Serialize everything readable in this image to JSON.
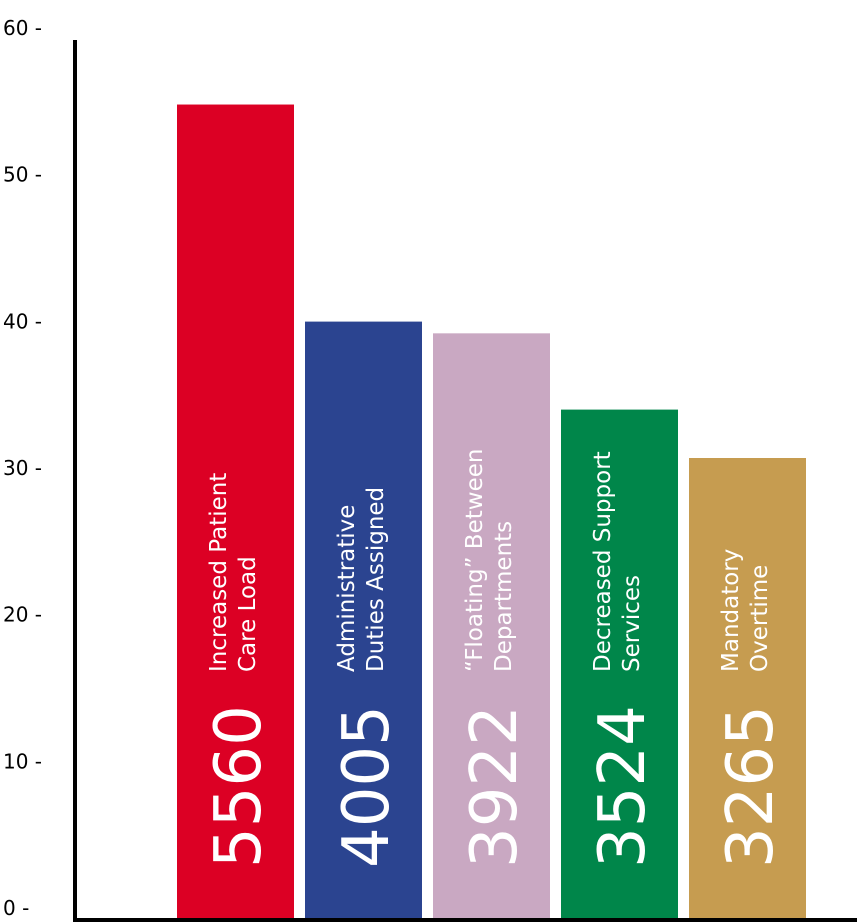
{
  "chart_data": {
    "type": "bar",
    "ylim": [
      0,
      60
    ],
    "yticks": [
      {
        "value": 0,
        "label": "0 -"
      },
      {
        "value": 10,
        "label": "10 -"
      },
      {
        "value": 20,
        "label": "20 -"
      },
      {
        "value": 30,
        "label": "30 -"
      },
      {
        "value": 40,
        "label": "40 -"
      },
      {
        "value": 50,
        "label": "50 -"
      },
      {
        "value": 60,
        "label": "60 -"
      }
    ],
    "grid": false,
    "bars": [
      {
        "value": 55.6,
        "count": "5560",
        "label_lines": [
          "Increased Patient",
          "Care Load"
        ],
        "color": "#dc0024",
        "text_color": "#ffffff"
      },
      {
        "value": 40.8,
        "count": "4005",
        "label_lines": [
          "Administrative",
          "Duties Assigned"
        ],
        "color": "#2b4490",
        "text_color": "#ffffff"
      },
      {
        "value": 40.0,
        "count": "3922",
        "label_lines": [
          "“Floating” Between",
          "Departments"
        ],
        "color": "#c9a8c2",
        "text_color": "#ffffff"
      },
      {
        "value": 34.8,
        "count": "3524",
        "label_lines": [
          "Decreased Support",
          "Services"
        ],
        "color": "#00864a",
        "text_color": "#ffffff"
      },
      {
        "value": 31.5,
        "count": "3265",
        "label_lines": [
          "Mandatory",
          "Overtime"
        ],
        "color": "#c69c50",
        "text_color": "#ffffff"
      }
    ],
    "axis_color": "#000000"
  }
}
